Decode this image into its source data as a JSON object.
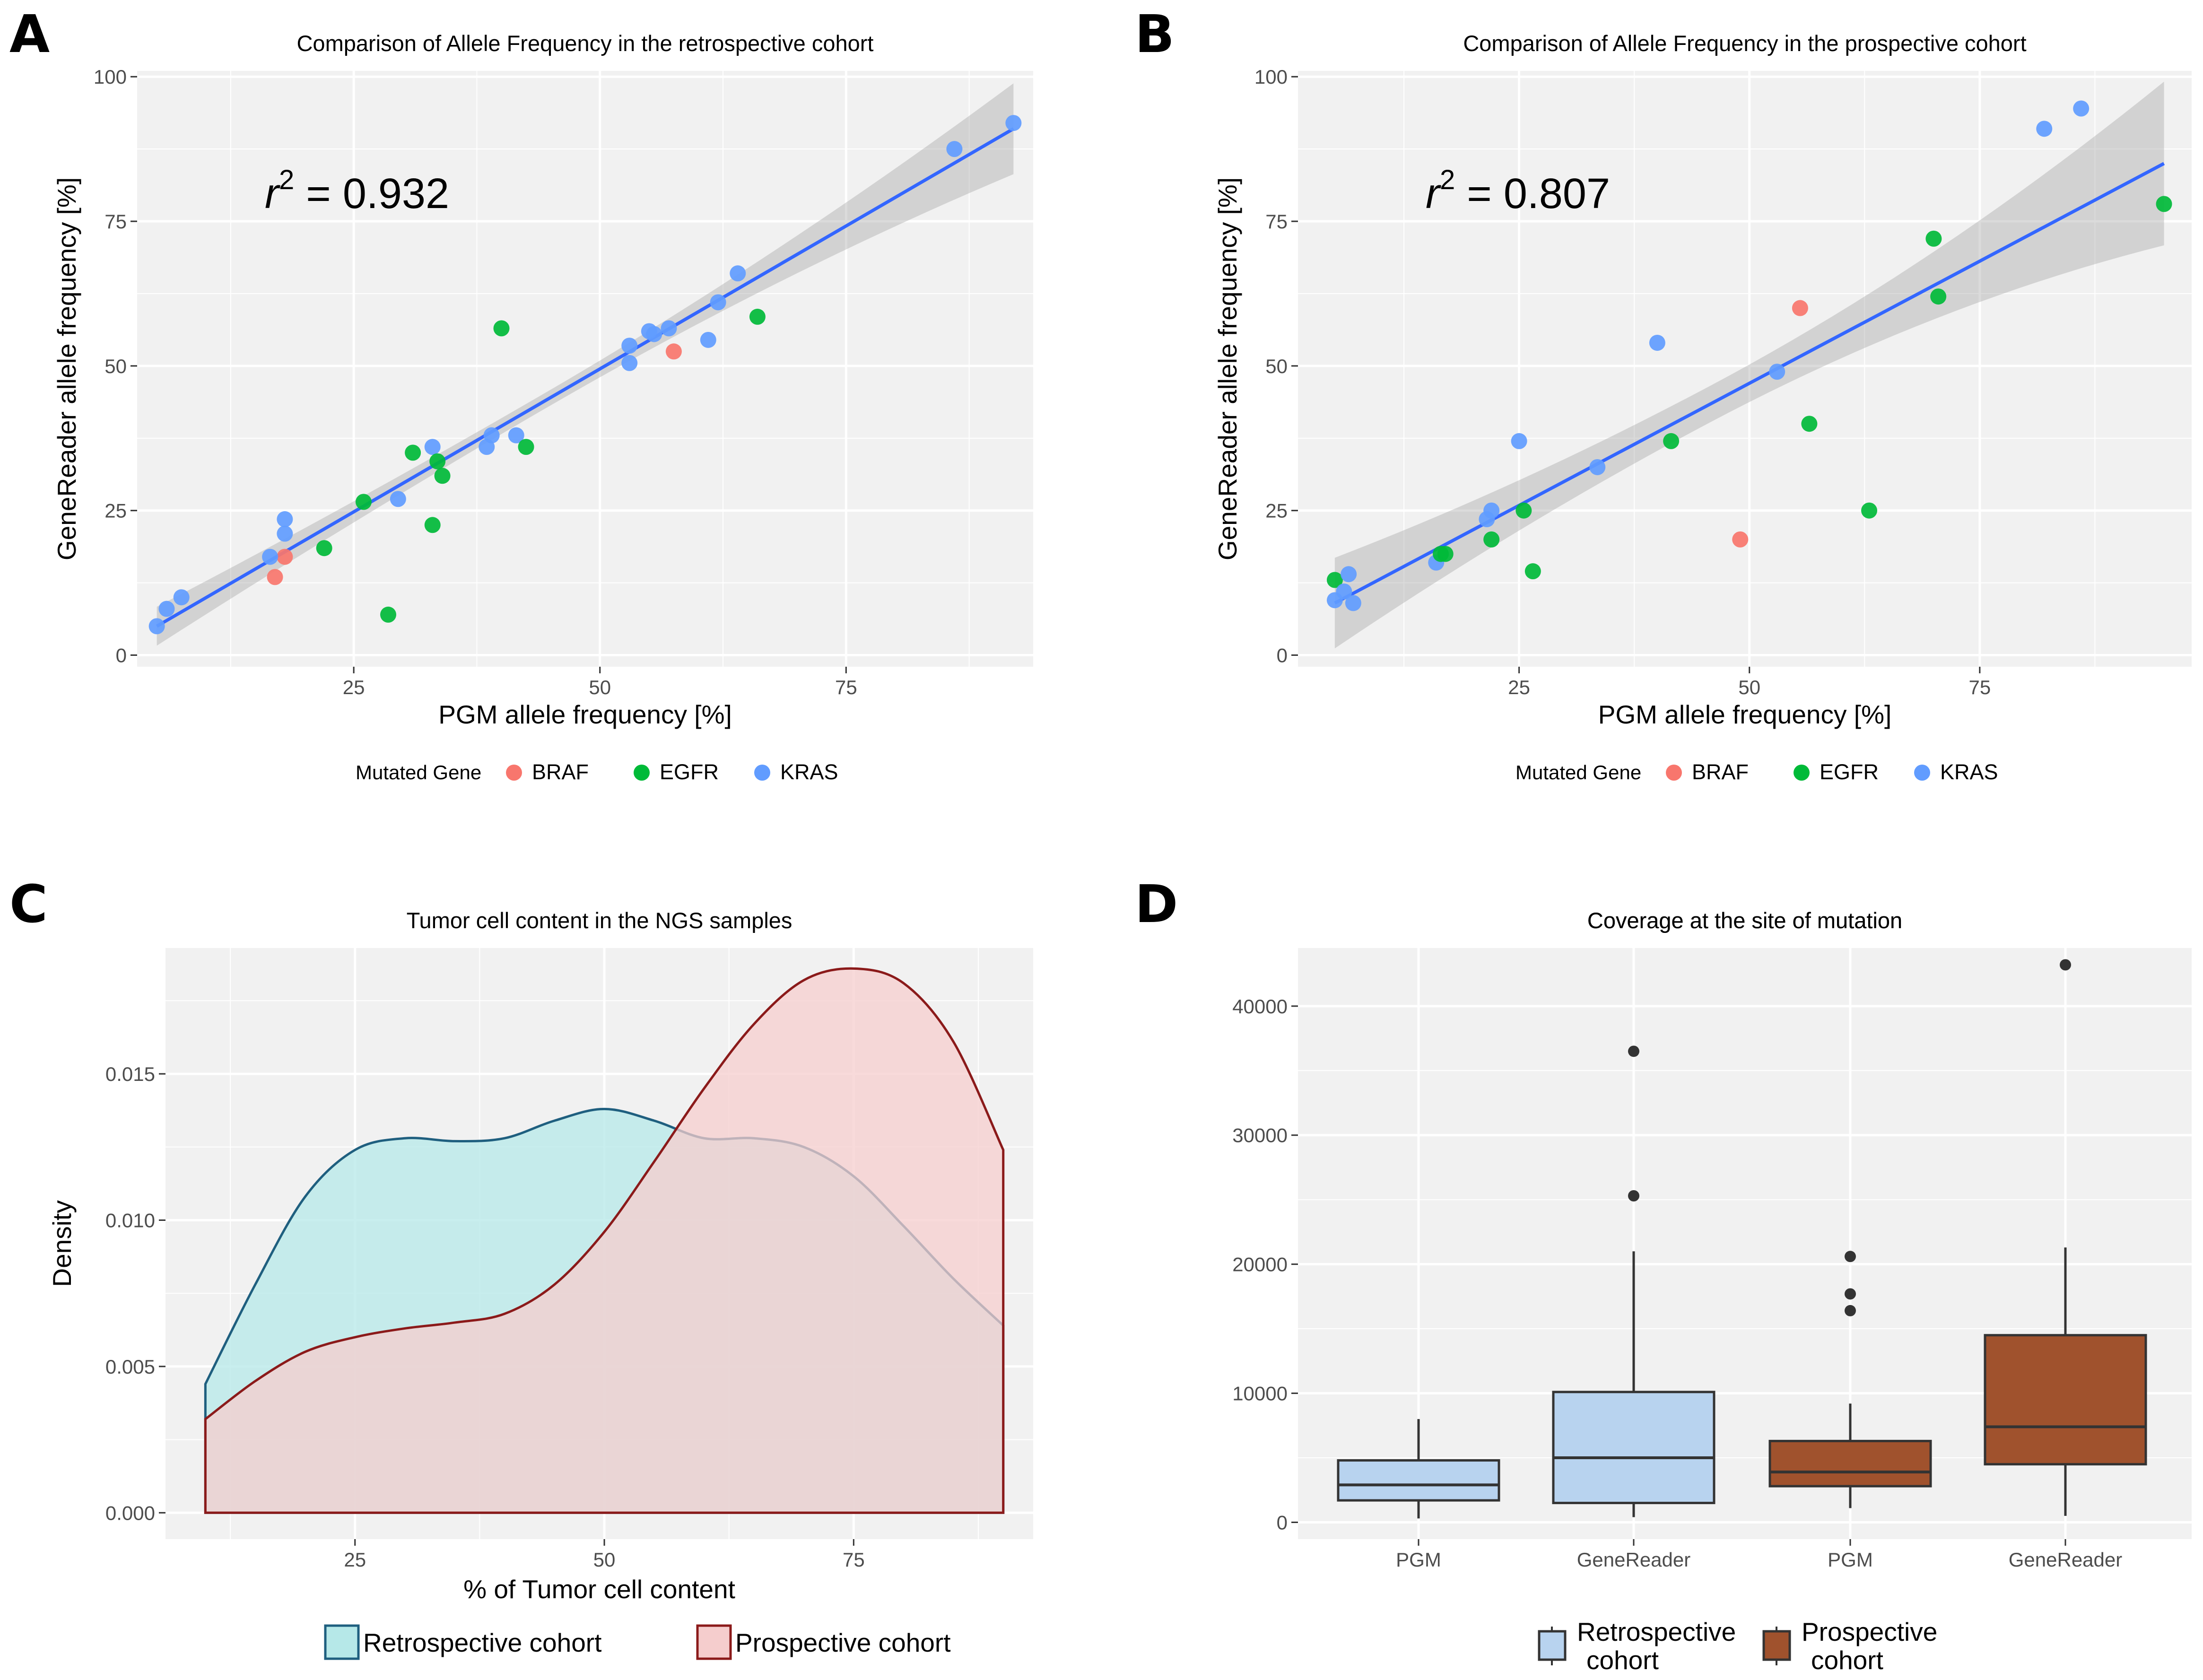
{
  "colors": {
    "BRAF": "#F8766D",
    "EGFR": "#00BA38",
    "KRAS": "#619CFF",
    "fit": "#3366FF",
    "retro_fill": "#B6E8E8",
    "retro_line": "#1F5F7F",
    "prosp_fill": "#F5CDCD",
    "prosp_line": "#8B1A1A",
    "box_retro": "#B8D3EF",
    "box_prosp": "#A0522D"
  },
  "chart_data": [
    {
      "panel": "A",
      "type": "scatter",
      "title": "Comparison of Allele Frequency in the retrospective cohort",
      "xlabel": "PGM allele frequency [%]",
      "ylabel": "GeneReader allele frequency [%]",
      "xlim": [
        3,
        94
      ],
      "ylim": [
        -2,
        101
      ],
      "xticks": [
        25,
        50,
        75
      ],
      "yticks": [
        0,
        25,
        50,
        75,
        100
      ],
      "xticklabels": [
        "25",
        "50",
        "75"
      ],
      "yticklabels": [
        "0",
        "25",
        "50",
        "75",
        "100"
      ],
      "annotation_r": "r",
      "annotation_exp": "2",
      "annotation_value": " = 0.932",
      "legend_title": "Mutated Gene",
      "legend": [
        "BRAF",
        "EGFR",
        "KRAS"
      ],
      "fit": {
        "x": [
          5,
          92
        ],
        "y": [
          5,
          91
        ],
        "ci_start": 3,
        "ci_end": 6.5
      },
      "points": [
        {
          "x": 5,
          "y": 5,
          "g": "KRAS"
        },
        {
          "x": 6,
          "y": 8,
          "g": "KRAS"
        },
        {
          "x": 7.5,
          "y": 10,
          "g": "KRAS"
        },
        {
          "x": 17,
          "y": 13.5,
          "g": "BRAF"
        },
        {
          "x": 18,
          "y": 17,
          "g": "BRAF"
        },
        {
          "x": 16.5,
          "y": 17,
          "g": "KRAS"
        },
        {
          "x": 18,
          "y": 21,
          "g": "KRAS"
        },
        {
          "x": 18,
          "y": 23.5,
          "g": "KRAS"
        },
        {
          "x": 22,
          "y": 18.5,
          "g": "EGFR"
        },
        {
          "x": 26,
          "y": 26.5,
          "g": "EGFR"
        },
        {
          "x": 28.5,
          "y": 7,
          "g": "EGFR"
        },
        {
          "x": 29.5,
          "y": 27,
          "g": "KRAS"
        },
        {
          "x": 31,
          "y": 35,
          "g": "EGFR"
        },
        {
          "x": 33,
          "y": 22.5,
          "g": "EGFR"
        },
        {
          "x": 33,
          "y": 36,
          "g": "KRAS"
        },
        {
          "x": 33.5,
          "y": 33.5,
          "g": "EGFR"
        },
        {
          "x": 34,
          "y": 31,
          "g": "EGFR"
        },
        {
          "x": 38.5,
          "y": 36,
          "g": "KRAS"
        },
        {
          "x": 39,
          "y": 38,
          "g": "KRAS"
        },
        {
          "x": 40,
          "y": 56.5,
          "g": "EGFR"
        },
        {
          "x": 41.5,
          "y": 38,
          "g": "KRAS"
        },
        {
          "x": 42.5,
          "y": 36,
          "g": "EGFR"
        },
        {
          "x": 53,
          "y": 50.5,
          "g": "KRAS"
        },
        {
          "x": 53,
          "y": 53.5,
          "g": "KRAS"
        },
        {
          "x": 55,
          "y": 56,
          "g": "KRAS"
        },
        {
          "x": 55.5,
          "y": 55.5,
          "g": "KRAS"
        },
        {
          "x": 57,
          "y": 56.5,
          "g": "KRAS"
        },
        {
          "x": 57.5,
          "y": 52.5,
          "g": "BRAF"
        },
        {
          "x": 61,
          "y": 54.5,
          "g": "KRAS"
        },
        {
          "x": 62,
          "y": 61,
          "g": "KRAS"
        },
        {
          "x": 64,
          "y": 66,
          "g": "KRAS"
        },
        {
          "x": 66,
          "y": 58.5,
          "g": "EGFR"
        },
        {
          "x": 86,
          "y": 87.5,
          "g": "KRAS"
        },
        {
          "x": 92,
          "y": 92,
          "g": "KRAS"
        }
      ]
    },
    {
      "panel": "B",
      "type": "scatter",
      "title": "Comparison of Allele Frequency in the prospective cohort",
      "xlabel": "PGM allele frequency [%]",
      "ylabel": "GeneReader allele frequency [%]",
      "xlim": [
        1,
        98
      ],
      "ylim": [
        -2,
        101
      ],
      "xticks": [
        25,
        50,
        75
      ],
      "yticks": [
        0,
        25,
        50,
        75,
        100
      ],
      "xticklabels": [
        "25",
        "50",
        "75"
      ],
      "yticklabels": [
        "0",
        "25",
        "50",
        "75",
        "100"
      ],
      "annotation_r": "r",
      "annotation_exp": "2",
      "annotation_value": " = 0.807",
      "legend_title": "Mutated Gene",
      "legend": [
        "BRAF",
        "EGFR",
        "KRAS"
      ],
      "fit": {
        "x": [
          5,
          95
        ],
        "y": [
          9,
          85
        ],
        "ci_start": 7,
        "ci_end": 11
      },
      "points": [
        {
          "x": 5,
          "y": 9.5,
          "g": "KRAS"
        },
        {
          "x": 5,
          "y": 13,
          "g": "EGFR"
        },
        {
          "x": 6,
          "y": 11,
          "g": "KRAS"
        },
        {
          "x": 6.5,
          "y": 14,
          "g": "KRAS"
        },
        {
          "x": 7,
          "y": 9,
          "g": "KRAS"
        },
        {
          "x": 16,
          "y": 16,
          "g": "KRAS"
        },
        {
          "x": 16.5,
          "y": 17.5,
          "g": "EGFR"
        },
        {
          "x": 17,
          "y": 17.5,
          "g": "EGFR"
        },
        {
          "x": 21.5,
          "y": 23.5,
          "g": "KRAS"
        },
        {
          "x": 22,
          "y": 25,
          "g": "KRAS"
        },
        {
          "x": 22,
          "y": 20,
          "g": "EGFR"
        },
        {
          "x": 25,
          "y": 37,
          "g": "KRAS"
        },
        {
          "x": 25.5,
          "y": 25,
          "g": "EGFR"
        },
        {
          "x": 26.5,
          "y": 14.5,
          "g": "EGFR"
        },
        {
          "x": 33.5,
          "y": 32.5,
          "g": "KRAS"
        },
        {
          "x": 40,
          "y": 54,
          "g": "KRAS"
        },
        {
          "x": 41.5,
          "y": 37,
          "g": "EGFR"
        },
        {
          "x": 49,
          "y": 20,
          "g": "BRAF"
        },
        {
          "x": 53,
          "y": 49,
          "g": "KRAS"
        },
        {
          "x": 55.5,
          "y": 60,
          "g": "BRAF"
        },
        {
          "x": 56.5,
          "y": 40,
          "g": "EGFR"
        },
        {
          "x": 63,
          "y": 25,
          "g": "EGFR"
        },
        {
          "x": 70,
          "y": 72,
          "g": "EGFR"
        },
        {
          "x": 70.5,
          "y": 62,
          "g": "EGFR"
        },
        {
          "x": 82,
          "y": 91,
          "g": "KRAS"
        },
        {
          "x": 86,
          "y": 94.5,
          "g": "KRAS"
        },
        {
          "x": 95,
          "y": 78,
          "g": "EGFR"
        }
      ]
    },
    {
      "panel": "C",
      "type": "area",
      "title": "Tumor cell content in the NGS samples",
      "xlabel": "% of Tumor cell content",
      "ylabel": "Density",
      "xlim": [
        6,
        93
      ],
      "ylim": [
        -0.0009,
        0.0193
      ],
      "xticks": [
        25,
        50,
        75
      ],
      "yticks": [
        0,
        0.005,
        0.01,
        0.015
      ],
      "xticklabels": [
        "25",
        "50",
        "75"
      ],
      "yticklabels": [
        "0.000",
        "0.005",
        "0.010",
        "0.015"
      ],
      "series": [
        {
          "name": "Retrospective cohort",
          "x": [
            10,
            15,
            20,
            25,
            30,
            35,
            40,
            45,
            50,
            55,
            60,
            65,
            70,
            75,
            80,
            85,
            90
          ],
          "y": [
            0.0044,
            0.0078,
            0.0108,
            0.0124,
            0.0128,
            0.0127,
            0.0128,
            0.0134,
            0.0138,
            0.0134,
            0.0128,
            0.0128,
            0.0125,
            0.0115,
            0.0098,
            0.008,
            0.0064
          ]
        },
        {
          "name": "Prospective cohort",
          "x": [
            10,
            15,
            20,
            25,
            30,
            35,
            40,
            45,
            50,
            55,
            60,
            65,
            70,
            75,
            80,
            85,
            90
          ],
          "y": [
            0.0032,
            0.0045,
            0.0055,
            0.006,
            0.0063,
            0.0065,
            0.0068,
            0.0078,
            0.0096,
            0.012,
            0.0145,
            0.0167,
            0.0182,
            0.0186,
            0.0181,
            0.0161,
            0.0124
          ]
        }
      ]
    },
    {
      "panel": "D",
      "type": "box",
      "title": "Coverage at the site of mutation",
      "ylim": [
        -1300,
        44500
      ],
      "yticks": [
        0,
        10000,
        20000,
        30000,
        40000
      ],
      "yticklabels": [
        "0",
        "10000",
        "20000",
        "30000",
        "40000"
      ],
      "categories": [
        "PGM",
        "GeneReader",
        "PGM",
        "GeneReader"
      ],
      "legend": [
        "Retrospective\ncohort",
        "Prospective\ncohort"
      ],
      "legend_lines": [
        [
          "Retrospective",
          "cohort"
        ],
        [
          "Prospective",
          "cohort"
        ]
      ],
      "boxes": [
        {
          "cat": 0,
          "group": 0,
          "min": 300,
          "q1": 1700,
          "median": 2900,
          "q3": 4800,
          "max": 8000,
          "outliers": []
        },
        {
          "cat": 1,
          "group": 0,
          "min": 400,
          "q1": 1500,
          "median": 5000,
          "q3": 10100,
          "max": 21000,
          "outliers": [
            25300,
            36500
          ]
        },
        {
          "cat": 2,
          "group": 1,
          "min": 1100,
          "q1": 2800,
          "median": 3900,
          "q3": 6300,
          "max": 9200,
          "outliers": [
            16400,
            17700,
            20600
          ]
        },
        {
          "cat": 3,
          "group": 1,
          "min": 500,
          "q1": 4500,
          "median": 7400,
          "q3": 14500,
          "max": 21300,
          "outliers": [
            43200
          ]
        }
      ]
    }
  ]
}
